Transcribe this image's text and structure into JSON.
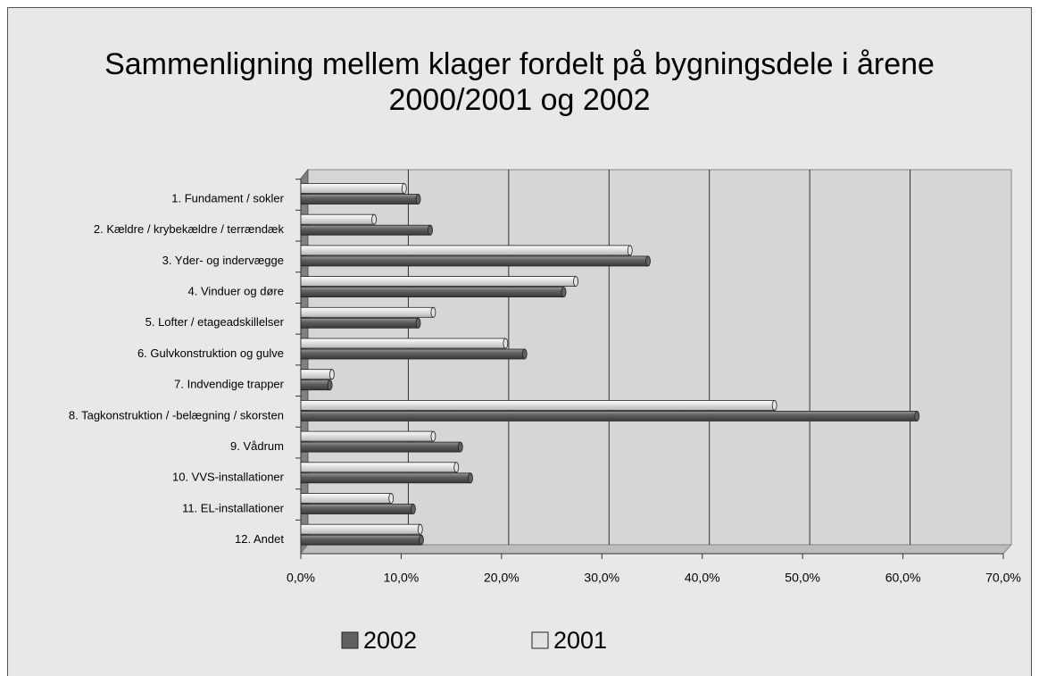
{
  "chart_data": {
    "type": "barh",
    "title": "Sammenligning mellem klager fordelt på bygningsdele i årene 2000/2001 og 2002",
    "categories": [
      "1. Fundament / sokler",
      "2. Kældre / krybekældre / terrændæk",
      "3. Yder- og indervægge",
      "4. Vinduer og døre",
      "5. Lofter / etageadskillelser",
      "6. Gulvkonstruktion og gulve",
      "7. Indvendige trapper",
      "8. Tagkonstruktion / -belægning / skorsten",
      "9. Vådrum",
      "10. VVS-installationer",
      "11. EL-installationer",
      "12. Andet"
    ],
    "series": [
      {
        "name": "2002",
        "color": "#606060",
        "values": [
          11.7,
          12.9,
          34.6,
          26.2,
          11.7,
          22.3,
          2.9,
          61.4,
          15.9,
          16.9,
          11.2,
          12.0
        ]
      },
      {
        "name": "2001",
        "color": "#e2e2e2",
        "values": [
          10.3,
          7.3,
          32.8,
          27.4,
          13.2,
          20.4,
          3.1,
          47.2,
          13.2,
          15.5,
          9.0,
          11.9
        ]
      }
    ],
    "xlim": [
      0,
      70
    ],
    "xticks": [
      {
        "value": 0,
        "label": "0,0%"
      },
      {
        "value": 10,
        "label": "10,0%"
      },
      {
        "value": 20,
        "label": "20,0%"
      },
      {
        "value": 30,
        "label": "30,0%"
      },
      {
        "value": 40,
        "label": "40,0%"
      },
      {
        "value": 50,
        "label": "50,0%"
      },
      {
        "value": 60,
        "label": "60,0%"
      },
      {
        "value": 70,
        "label": "70,0%"
      }
    ],
    "grid": true,
    "legend": "bottom"
  }
}
